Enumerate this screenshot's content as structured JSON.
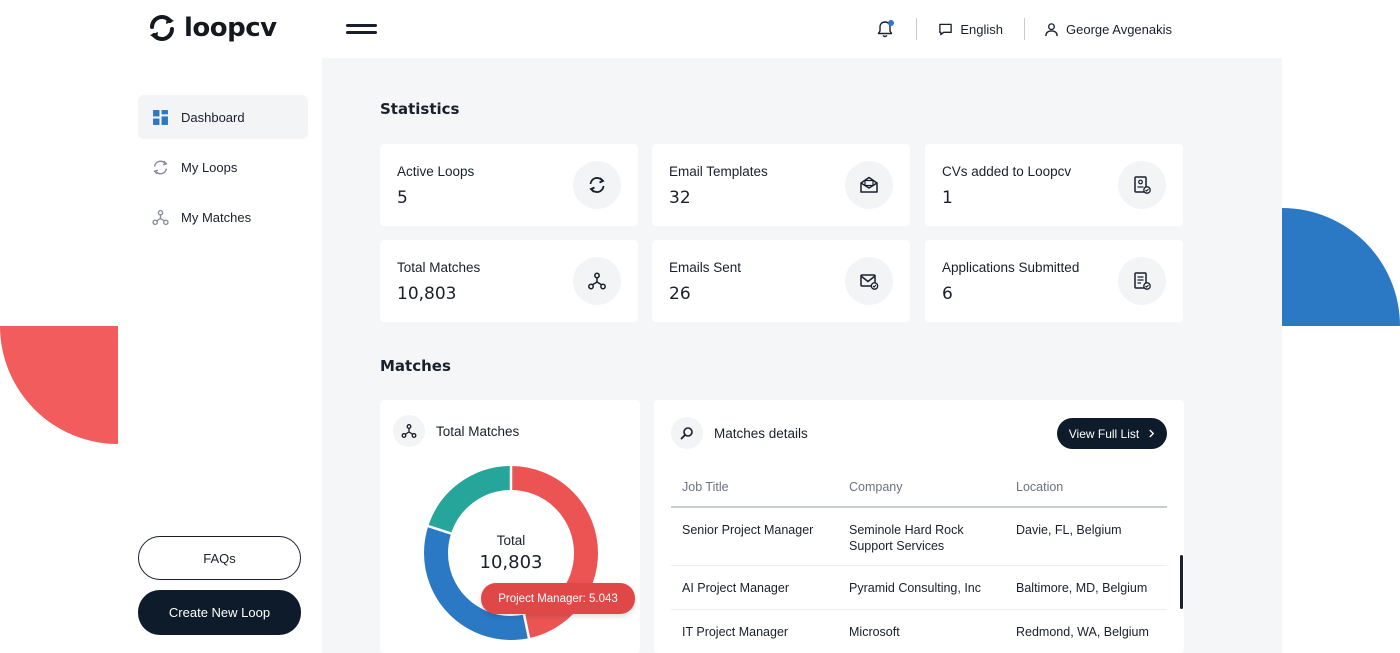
{
  "brand": {
    "name": "loopcv"
  },
  "header": {
    "language": "English",
    "user_name": "George Avgenakis"
  },
  "sidebar": {
    "items": [
      {
        "label": "Dashboard"
      },
      {
        "label": "My Loops"
      },
      {
        "label": "My Matches"
      }
    ],
    "faq_label": "FAQs",
    "create_label": "Create New Loop"
  },
  "statistics": {
    "title": "Statistics",
    "cards": [
      {
        "label": "Active Loops",
        "value": "5",
        "icon": "refresh-icon"
      },
      {
        "label": "Email Templates",
        "value": "32",
        "icon": "email-open-icon"
      },
      {
        "label": "CVs added to Loopcv",
        "value": "1",
        "icon": "cv-check-icon"
      },
      {
        "label": "Total Matches",
        "value": "10,803",
        "icon": "matches-icon"
      },
      {
        "label": "Emails Sent",
        "value": "26",
        "icon": "email-sent-icon"
      },
      {
        "label": "Applications Submitted",
        "value": "6",
        "icon": "application-check-icon"
      }
    ]
  },
  "matches": {
    "title": "Matches",
    "total_card": {
      "title": "Total Matches",
      "center_label": "Total",
      "center_value": "10,803",
      "tooltip": "Project Manager: 5.043"
    },
    "details_card": {
      "title": "Matches details",
      "view_label": "View Full List",
      "columns": [
        "Job Title",
        "Company",
        "Location"
      ],
      "rows": [
        [
          "Senior Project Manager",
          "Seminole Hard Rock Support Services",
          "Davie, FL, Belgium"
        ],
        [
          "AI Project Manager",
          "Pyramid Consulting, Inc",
          "Baltimore, MD, Belgium"
        ],
        [
          "IT Project Manager",
          "Microsoft",
          "Redmond, WA, Belgium"
        ]
      ]
    }
  },
  "chart_data": {
    "type": "pie",
    "title": "Total Matches",
    "total": 10803,
    "slices": [
      {
        "name": "Project Manager",
        "value": 5043,
        "color": "#ec5454"
      },
      {
        "name": "",
        "value": 3600,
        "color": "#2b78c5"
      },
      {
        "name": "",
        "value": 2160,
        "color": "#26a69a"
      }
    ]
  },
  "colors": {
    "accent_blue": "#2b78c5",
    "accent_red": "#f25c5c",
    "dark": "#0d1b2a",
    "teal": "#26a69a"
  }
}
